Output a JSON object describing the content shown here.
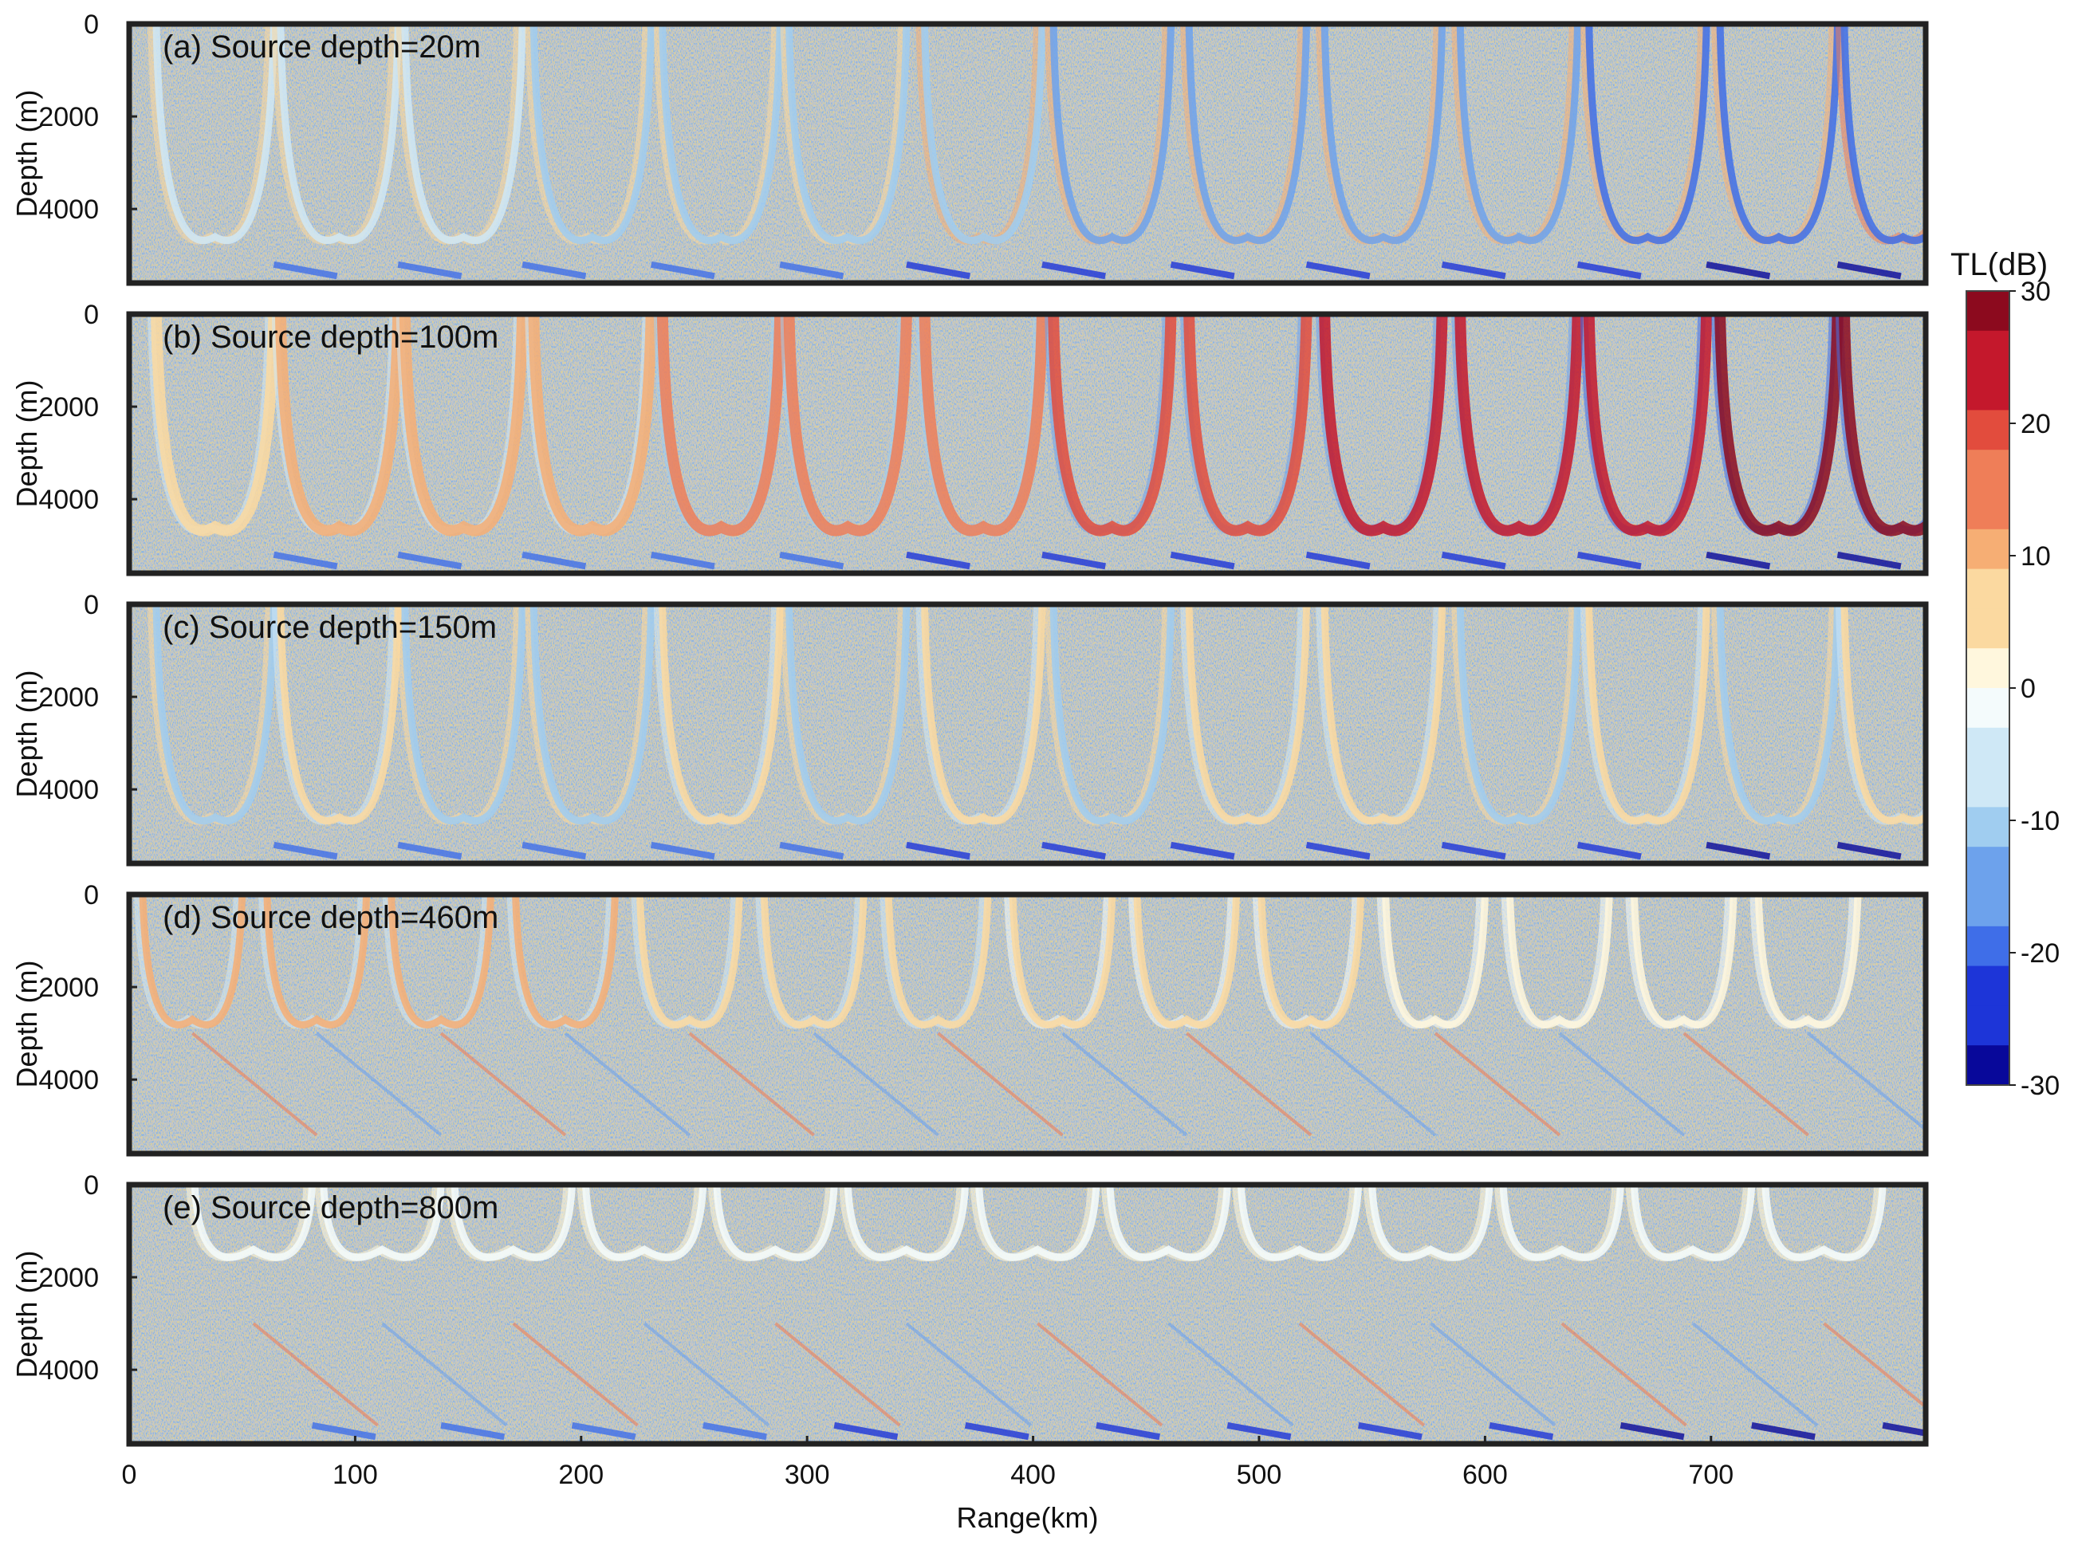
{
  "chart_data": {
    "type": "heatmap",
    "x_axis": {
      "label": "Range(km)",
      "range": [
        0,
        795
      ],
      "ticks": [
        0,
        100,
        200,
        300,
        400,
        500,
        600,
        700
      ],
      "tick_labels": [
        "0",
        "100",
        "200",
        "300",
        "400",
        "500",
        "600",
        "700"
      ]
    },
    "y_axis": {
      "label": "Depth (m)",
      "range": [
        0,
        5600
      ],
      "ticks": [
        0,
        2000,
        4000
      ],
      "tick_labels": [
        "0",
        "2000",
        "4000"
      ],
      "inverted": true
    },
    "colorbar": {
      "title": "TL(dB)",
      "range": [
        -30,
        30
      ],
      "ticks": [
        30,
        20,
        10,
        0,
        -10,
        -20,
        -30
      ],
      "tick_labels": [
        "30",
        "20",
        "10",
        "0",
        "-10",
        "-20",
        "-30"
      ],
      "levels": 20,
      "colormap": [
        "#08089a",
        "#1d35d8",
        "#3f6ee8",
        "#6da2ec",
        "#a0cdf0",
        "#cfe8f6",
        "#f4fbfc",
        "#fff7dd",
        "#fbd9a0",
        "#f6ae74",
        "#ef7e58",
        "#e24c3d",
        "#c4182c",
        "#8c0a1e"
      ]
    },
    "panels": [
      {
        "label": "(a) Source depth=20m",
        "source_depth_m": 20,
        "pattern": "convergence-zone arches, mostly blue at depth with strong blue bands near bottom",
        "peaks_km": [
          38,
          93,
          148,
          205,
          262,
          318,
          378,
          435,
          495,
          555,
          615,
          672,
          730,
          785
        ]
      },
      {
        "label": "(b) Source depth=100m",
        "source_depth_m": 100,
        "pattern": "strong red convergence-zone arches increasing with range",
        "peaks_km": [
          38,
          93,
          148,
          205,
          262,
          318,
          378,
          435,
          495,
          555,
          615,
          672,
          730,
          785
        ]
      },
      {
        "label": "(c)  Source depth=150m",
        "source_depth_m": 150,
        "pattern": "mixed red and blue arches with blue/red bottom branches",
        "peaks_km": [
          38,
          93,
          148,
          205,
          262,
          318,
          378,
          435,
          495,
          555,
          615,
          672,
          730,
          785
        ]
      },
      {
        "label": "(d)  Source depth=460m",
        "source_depth_m": 460,
        "pattern": "shallow arches near surface, weaker diagonal striations at depth",
        "peaks_km": [
          28,
          83,
          138,
          193,
          248,
          303,
          358,
          413,
          468,
          523,
          578,
          633,
          688,
          743
        ]
      },
      {
        "label": "(e)  Source depth=800m",
        "source_depth_m": 800,
        "pattern": "weak noisy field with faint diagonal striations and blue patches near bottom",
        "peaks_km": [
          55,
          112,
          170,
          228,
          286,
          344,
          402,
          460,
          518,
          576,
          634,
          692,
          750
        ]
      }
    ]
  }
}
